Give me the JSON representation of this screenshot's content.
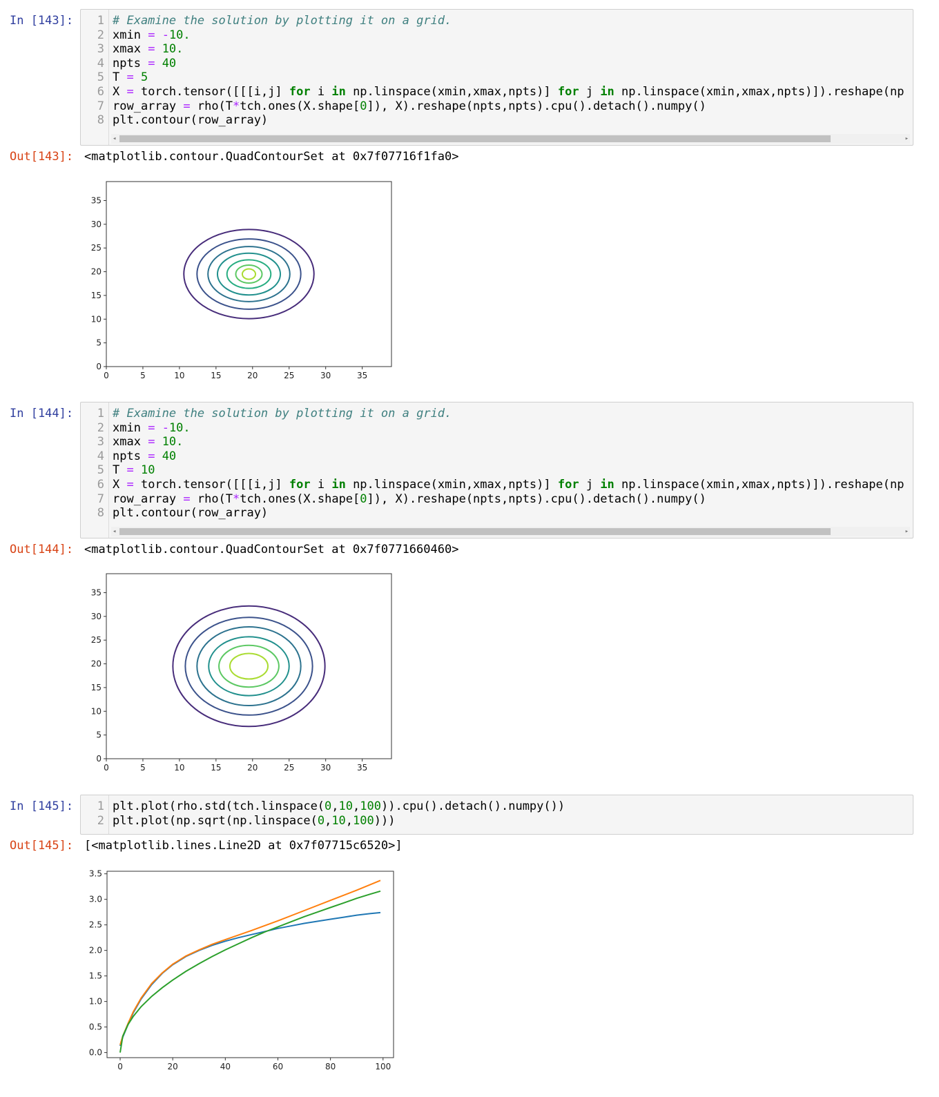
{
  "cells": [
    {
      "in_prompt": "In [143]:",
      "out_prompt": "Out[143]:",
      "lines": [
        "# Examine the solution by plotting it on a grid.",
        "xmin = -10.",
        "xmax = 10.",
        "npts = 40",
        "T = 5",
        "X = torch.tensor([[[i,j] for i in np.linspace(xmin,xmax,npts)] for j in np.linspace(xmin,xmax,npts)]).reshape(np",
        "row_array = rho(T*tch.ones(X.shape[0]), X).reshape(npts,npts).cpu().detach().numpy()",
        "plt.contour(row_array)"
      ],
      "output": "<matplotlib.contour.QuadContourSet at 0x7f07716f1fa0>"
    },
    {
      "in_prompt": "In [144]:",
      "out_prompt": "Out[144]:",
      "lines": [
        "# Examine the solution by plotting it on a grid.",
        "xmin = -10.",
        "xmax = 10.",
        "npts = 40",
        "T = 10",
        "X = torch.tensor([[[i,j] for i in np.linspace(xmin,xmax,npts)] for j in np.linspace(xmin,xmax,npts)]).reshape(np",
        "row_array = rho(T*tch.ones(X.shape[0]), X).reshape(npts,npts).cpu().detach().numpy()",
        "plt.contour(row_array)"
      ],
      "output": "<matplotlib.contour.QuadContourSet at 0x7f0771660460>"
    },
    {
      "in_prompt": "In [145]:",
      "out_prompt": "Out[145]:",
      "lines": [
        "plt.plot(rho.std(tch.linspace(0,10,100)).cpu().detach().numpy())",
        "plt.plot(np.sqrt(np.linspace(0,10,100)))"
      ],
      "output": "[<matplotlib.lines.Line2D at 0x7f07715c6520>]"
    }
  ],
  "line_numbers": [
    "1",
    "2",
    "3",
    "4",
    "5",
    "6",
    "7",
    "8"
  ],
  "chart_data": [
    {
      "type": "contour",
      "xlim": [
        0,
        39
      ],
      "ylim": [
        0,
        39
      ],
      "xticks": [
        "0",
        "5",
        "10",
        "15",
        "20",
        "25",
        "30",
        "35"
      ],
      "yticks": [
        "0",
        "5",
        "10",
        "15",
        "20",
        "25",
        "30",
        "35"
      ],
      "center": [
        19.5,
        19.5
      ],
      "levels": [
        {
          "rx": 8.9,
          "ry": 9.4,
          "color": "#472c7a"
        },
        {
          "rx": 7.1,
          "ry": 7.4,
          "color": "#3b528b"
        },
        {
          "rx": 5.6,
          "ry": 5.8,
          "color": "#2c728e"
        },
        {
          "rx": 4.3,
          "ry": 4.4,
          "color": "#21908d"
        },
        {
          "rx": 3.0,
          "ry": 3.0,
          "color": "#27ad81"
        },
        {
          "rx": 1.8,
          "ry": 1.9,
          "color": "#5cc863"
        },
        {
          "rx": 0.9,
          "ry": 1.1,
          "color": "#aadc32"
        }
      ]
    },
    {
      "type": "contour",
      "xlim": [
        0,
        39
      ],
      "ylim": [
        0,
        39
      ],
      "xticks": [
        "0",
        "5",
        "10",
        "15",
        "20",
        "25",
        "30",
        "35"
      ],
      "yticks": [
        "0",
        "5",
        "10",
        "15",
        "20",
        "25",
        "30",
        "35"
      ],
      "center": [
        19.5,
        19.5
      ],
      "levels": [
        {
          "rx": 10.4,
          "ry": 12.7,
          "color": "#472c7a"
        },
        {
          "rx": 8.7,
          "ry": 10.3,
          "color": "#3b528b"
        },
        {
          "rx": 7.1,
          "ry": 8.3,
          "color": "#2c728e"
        },
        {
          "rx": 5.5,
          "ry": 6.2,
          "color": "#21908d"
        },
        {
          "rx": 4.1,
          "ry": 4.4,
          "color": "#5cc863"
        },
        {
          "rx": 2.6,
          "ry": 2.7,
          "color": "#aadc32"
        }
      ]
    },
    {
      "type": "line",
      "xlim": [
        -5,
        104
      ],
      "ylim": [
        -0.1,
        3.55
      ],
      "xticks": [
        "0",
        "20",
        "40",
        "60",
        "80",
        "100"
      ],
      "yticks": [
        "0.0",
        "0.5",
        "1.0",
        "1.5",
        "2.0",
        "2.5",
        "3.0",
        "3.5"
      ],
      "series": [
        {
          "color": "#1f77b4",
          "points": [
            [
              0,
              0.13
            ],
            [
              1,
              0.3
            ],
            [
              3,
              0.55
            ],
            [
              5,
              0.78
            ],
            [
              8,
              1.05
            ],
            [
              12,
              1.33
            ],
            [
              16,
              1.55
            ],
            [
              20,
              1.72
            ],
            [
              25,
              1.88
            ],
            [
              30,
              2.0
            ],
            [
              35,
              2.1
            ],
            [
              40,
              2.18
            ],
            [
              45,
              2.25
            ],
            [
              50,
              2.31
            ],
            [
              55,
              2.37
            ],
            [
              60,
              2.43
            ],
            [
              65,
              2.48
            ],
            [
              70,
              2.53
            ],
            [
              75,
              2.57
            ],
            [
              80,
              2.61
            ],
            [
              85,
              2.65
            ],
            [
              90,
              2.69
            ],
            [
              95,
              2.72
            ],
            [
              99,
              2.74
            ]
          ]
        },
        {
          "color": "#ff7f0e",
          "points": [
            [
              0,
              0.15
            ],
            [
              1,
              0.32
            ],
            [
              3,
              0.57
            ],
            [
              5,
              0.8
            ],
            [
              8,
              1.07
            ],
            [
              12,
              1.35
            ],
            [
              16,
              1.56
            ],
            [
              20,
              1.73
            ],
            [
              25,
              1.89
            ],
            [
              30,
              2.01
            ],
            [
              35,
              2.12
            ],
            [
              40,
              2.21
            ],
            [
              50,
              2.39
            ],
            [
              60,
              2.58
            ],
            [
              70,
              2.78
            ],
            [
              80,
              2.98
            ],
            [
              90,
              3.18
            ],
            [
              99,
              3.37
            ]
          ]
        },
        {
          "color": "#2ca02c",
          "points": [
            [
              0,
              0.0
            ],
            [
              1,
              0.32
            ],
            [
              3,
              0.55
            ],
            [
              5,
              0.71
            ],
            [
              8,
              0.9
            ],
            [
              12,
              1.1
            ],
            [
              16,
              1.27
            ],
            [
              20,
              1.42
            ],
            [
              25,
              1.59
            ],
            [
              30,
              1.74
            ],
            [
              35,
              1.88
            ],
            [
              40,
              2.01
            ],
            [
              45,
              2.13
            ],
            [
              50,
              2.25
            ],
            [
              55,
              2.36
            ],
            [
              60,
              2.46
            ],
            [
              65,
              2.56
            ],
            [
              70,
              2.66
            ],
            [
              75,
              2.75
            ],
            [
              80,
              2.84
            ],
            [
              85,
              2.93
            ],
            [
              90,
              3.02
            ],
            [
              95,
              3.1
            ],
            [
              99,
              3.16
            ]
          ]
        }
      ]
    }
  ]
}
